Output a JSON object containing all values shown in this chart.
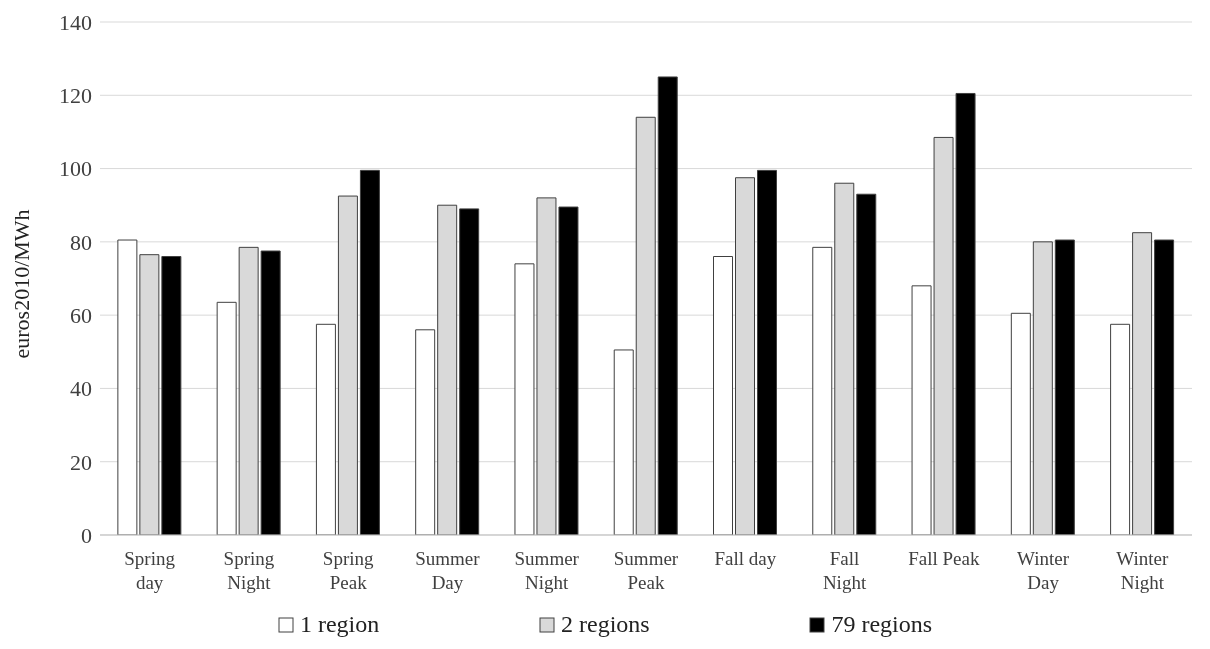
{
  "chart_data": {
    "type": "bar",
    "ylabel": "euros2010/MWh",
    "categories": [
      "Spring\nday",
      "Spring\nNight",
      "Spring\nPeak",
      "Summer\nDay",
      "Summer\nNight",
      "Summer\nPeak",
      "Fall day",
      "Fall\nNight",
      "Fall Peak",
      "Winter\nDay",
      "Winter\nNight"
    ],
    "series": [
      {
        "name": "1 region",
        "color": "#ffffff",
        "values": [
          80.5,
          63.5,
          57.5,
          56,
          74,
          50.5,
          76,
          78.5,
          68,
          60.5,
          57.5
        ]
      },
      {
        "name": "2 regions",
        "color": "#d9d9d9",
        "values": [
          76.5,
          78.5,
          92.5,
          90,
          92,
          114,
          97.5,
          96,
          108.5,
          80,
          82.5
        ]
      },
      {
        "name": "79 regions",
        "color": "#000000",
        "values": [
          76,
          77.5,
          99.5,
          89,
          89.5,
          125,
          99.5,
          93,
          120.5,
          80.5,
          80.5
        ]
      }
    ],
    "ylim": [
      0,
      140
    ],
    "yticks": [
      0,
      20,
      40,
      60,
      80,
      100,
      120,
      140
    ],
    "grid": "y",
    "legend": "bottom"
  }
}
